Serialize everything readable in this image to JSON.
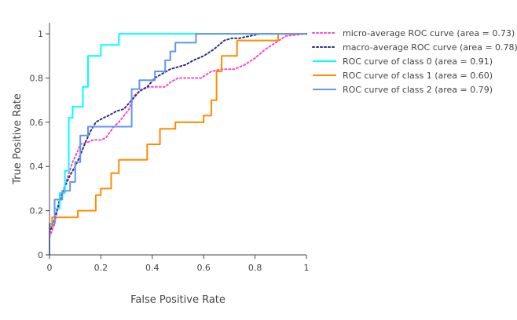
{
  "chart_data": {
    "type": "line",
    "title": "",
    "xlabel": "False Positive Rate",
    "ylabel": "True Positive Rate",
    "xlim": [
      0,
      1
    ],
    "ylim": [
      0,
      1.05
    ],
    "x_ticks": [
      "0",
      "0.2",
      "0.4",
      "0.6",
      "0.8",
      "1"
    ],
    "y_ticks": [
      "0",
      "0.2",
      "0.4",
      "0.6",
      "0.8",
      "1"
    ],
    "grid": false,
    "legend_position": "right",
    "series": [
      {
        "name": "micro-average ROC curve (area = 0.73)",
        "color": "#ff45c7",
        "dash": "dot",
        "x": [
          0,
          0.01,
          0.02,
          0.03,
          0.05,
          0.07,
          0.09,
          0.11,
          0.12,
          0.15,
          0.17,
          0.2,
          0.22,
          0.25,
          0.27,
          0.29,
          0.31,
          0.33,
          0.36,
          0.39,
          0.42,
          0.45,
          0.47,
          0.5,
          0.55,
          0.59,
          0.63,
          0.67,
          0.72,
          0.76,
          0.8,
          0.84,
          0.88,
          0.92,
          1
        ],
        "y": [
          0.08,
          0.11,
          0.14,
          0.2,
          0.27,
          0.35,
          0.42,
          0.47,
          0.5,
          0.51,
          0.52,
          0.52,
          0.53,
          0.58,
          0.6,
          0.63,
          0.66,
          0.72,
          0.75,
          0.76,
          0.76,
          0.76,
          0.78,
          0.8,
          0.8,
          0.8,
          0.83,
          0.84,
          0.84,
          0.86,
          0.89,
          0.93,
          0.96,
          0.99,
          1
        ]
      },
      {
        "name": "macro-average ROC curve (area = 0.78)",
        "color": "#2b2b8c",
        "dash": "dot",
        "x": [
          0,
          0.02,
          0.04,
          0.06,
          0.08,
          0.1,
          0.12,
          0.14,
          0.16,
          0.18,
          0.21,
          0.23,
          0.26,
          0.29,
          0.32,
          0.35,
          0.38,
          0.41,
          0.44,
          0.47,
          0.5,
          0.53,
          0.56,
          0.6,
          0.64,
          0.68,
          0.71,
          0.74,
          0.78,
          0.82,
          0.86,
          0.9,
          1
        ],
        "y": [
          0.1,
          0.16,
          0.25,
          0.31,
          0.36,
          0.4,
          0.45,
          0.51,
          0.56,
          0.6,
          0.62,
          0.63,
          0.65,
          0.66,
          0.7,
          0.74,
          0.76,
          0.8,
          0.82,
          0.84,
          0.85,
          0.86,
          0.88,
          0.9,
          0.93,
          0.97,
          0.98,
          0.98,
          0.99,
          1,
          1,
          1,
          1
        ]
      },
      {
        "name": "ROC curve of class 0 (area = 0.91)",
        "color": "#00ffff",
        "dash": "solid",
        "x": [
          0,
          0,
          0.02,
          0.02,
          0.04,
          0.04,
          0.06,
          0.06,
          0.075,
          0.075,
          0.09,
          0.09,
          0.13,
          0.13,
          0.15,
          0.15,
          0.2,
          0.2,
          0.27,
          0.27,
          0.39,
          0.39,
          1
        ],
        "y": [
          0,
          0.14,
          0.14,
          0.21,
          0.21,
          0.28,
          0.28,
          0.38,
          0.38,
          0.62,
          0.62,
          0.67,
          0.67,
          0.76,
          0.76,
          0.9,
          0.9,
          0.95,
          0.95,
          1,
          1,
          1,
          1
        ]
      },
      {
        "name": "ROC curve of class 1 (area = 0.60)",
        "color": "#ff8c00",
        "dash": "solid",
        "x": [
          0,
          0,
          0.01,
          0.01,
          0.11,
          0.11,
          0.18,
          0.18,
          0.2,
          0.2,
          0.24,
          0.24,
          0.27,
          0.27,
          0.38,
          0.38,
          0.43,
          0.43,
          0.49,
          0.49,
          0.6,
          0.6,
          0.63,
          0.63,
          0.65,
          0.65,
          0.67,
          0.67,
          0.73,
          0.73,
          0.89,
          0.89,
          1
        ],
        "y": [
          0,
          0.13,
          0.13,
          0.17,
          0.17,
          0.2,
          0.2,
          0.27,
          0.27,
          0.3,
          0.3,
          0.37,
          0.37,
          0.43,
          0.43,
          0.5,
          0.5,
          0.57,
          0.57,
          0.6,
          0.6,
          0.63,
          0.63,
          0.7,
          0.7,
          0.83,
          0.83,
          0.9,
          0.9,
          0.97,
          0.97,
          1,
          1
        ]
      },
      {
        "name": "ROC curve of class 2 (area = 0.79)",
        "color": "#6495ed",
        "dash": "solid",
        "x": [
          0,
          0,
          0.02,
          0.02,
          0.05,
          0.05,
          0.08,
          0.08,
          0.1,
          0.1,
          0.12,
          0.12,
          0.15,
          0.15,
          0.18,
          0.18,
          0.32,
          0.32,
          0.35,
          0.35,
          0.41,
          0.41,
          0.45,
          0.45,
          0.47,
          0.47,
          0.49,
          0.49,
          0.53,
          0.53,
          0.57,
          0.57,
          1
        ],
        "y": [
          0,
          0.14,
          0.14,
          0.25,
          0.25,
          0.29,
          0.29,
          0.33,
          0.33,
          0.42,
          0.42,
          0.54,
          0.54,
          0.58,
          0.58,
          0.58,
          0.58,
          0.75,
          0.75,
          0.79,
          0.79,
          0.83,
          0.83,
          0.88,
          0.88,
          0.92,
          0.92,
          0.96,
          0.96,
          0.96,
          0.96,
          1,
          1
        ]
      }
    ]
  }
}
